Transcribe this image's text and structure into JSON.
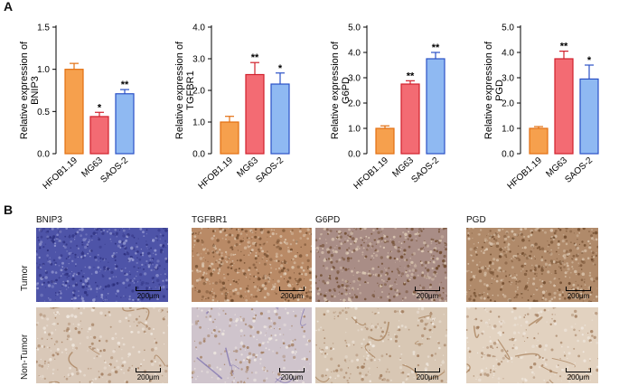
{
  "panel_a_letter": "A",
  "panel_b_letter": "B",
  "chart_data": [
    {
      "type": "bar",
      "categories": [
        "HFOB1.19",
        "MG63",
        "SAOS-2"
      ],
      "values": [
        1.0,
        0.44,
        0.71
      ],
      "errors": [
        0.07,
        0.05,
        0.05
      ],
      "significance": [
        "",
        "*",
        "**"
      ],
      "ylabel": "Relative expression of BNIP3",
      "ylabel_lines": [
        "Relative expression of",
        "BNIP3"
      ],
      "ylim": [
        0,
        1.5
      ],
      "yticks": [
        "0.0",
        "0.5",
        "1.0",
        "1.5"
      ],
      "tick_values": [
        0,
        0.5,
        1.0,
        1.5
      ],
      "colors": [
        "#f6a04d",
        "#f36b73",
        "#8fb9f2"
      ],
      "edge_colors": [
        "#e36f10",
        "#d1202c",
        "#2a51c6"
      ]
    },
    {
      "type": "bar",
      "categories": [
        "HFOB1.19",
        "MG63",
        "SAOS-2"
      ],
      "values": [
        1.0,
        2.5,
        2.2
      ],
      "errors": [
        0.18,
        0.38,
        0.35
      ],
      "significance": [
        "",
        "**",
        "*"
      ],
      "ylabel": "Relative expression of TGFBR1",
      "ylabel_lines": [
        "Relative expression of",
        "TGFBR1"
      ],
      "ylim": [
        0,
        4.0
      ],
      "yticks": [
        "0.0",
        "1.0",
        "2.0",
        "3.0",
        "4.0"
      ],
      "tick_values": [
        0,
        1,
        2,
        3,
        4
      ],
      "colors": [
        "#f6a04d",
        "#f36b73",
        "#8fb9f2"
      ],
      "edge_colors": [
        "#e36f10",
        "#d1202c",
        "#2a51c6"
      ]
    },
    {
      "type": "bar",
      "categories": [
        "HFOB1.19",
        "MG63",
        "SAOS-2"
      ],
      "values": [
        1.0,
        2.75,
        3.75
      ],
      "errors": [
        0.1,
        0.13,
        0.25
      ],
      "significance": [
        "",
        "**",
        "**"
      ],
      "ylabel": "Relative expression of G6PD",
      "ylabel_lines": [
        "Relative expression of",
        "G6PD"
      ],
      "ylim": [
        0,
        5.0
      ],
      "yticks": [
        "0.0",
        "1.0",
        "2.0",
        "3.0",
        "4.0",
        "5.0"
      ],
      "tick_values": [
        0,
        1,
        2,
        3,
        4,
        5
      ],
      "colors": [
        "#f6a04d",
        "#f36b73",
        "#8fb9f2"
      ],
      "edge_colors": [
        "#e36f10",
        "#d1202c",
        "#2a51c6"
      ]
    },
    {
      "type": "bar",
      "categories": [
        "HFOB1.19",
        "MG63",
        "SAOS-2"
      ],
      "values": [
        1.0,
        3.75,
        2.95
      ],
      "errors": [
        0.07,
        0.3,
        0.55
      ],
      "significance": [
        "",
        "**",
        "*"
      ],
      "ylabel": "Relative expression of PGD",
      "ylabel_lines": [
        "Relative expression of",
        "PGD"
      ],
      "ylim": [
        0,
        5.0
      ],
      "yticks": [
        "0.0",
        "1.0",
        "2.0",
        "3.0",
        "4.0",
        "5.0"
      ],
      "tick_values": [
        0,
        1,
        2,
        3,
        4,
        5
      ],
      "colors": [
        "#f6a04d",
        "#f36b73",
        "#8fb9f2"
      ],
      "edge_colors": [
        "#e36f10",
        "#d1202c",
        "#2a51c6"
      ]
    }
  ],
  "ihc": {
    "columns": [
      "BNIP3",
      "TGFBR1",
      "G6PD",
      "PGD"
    ],
    "rows": [
      "Tumor",
      "Non-Tumor"
    ],
    "scale_label": "200μm",
    "tile_colors": [
      [
        "#4e54a8",
        "#b98a66",
        "#a98d86",
        "#b08a6a"
      ],
      [
        "#d9c8b8",
        "#cfc4cc",
        "#d8c7b4",
        "#e2d2c0"
      ]
    ]
  }
}
